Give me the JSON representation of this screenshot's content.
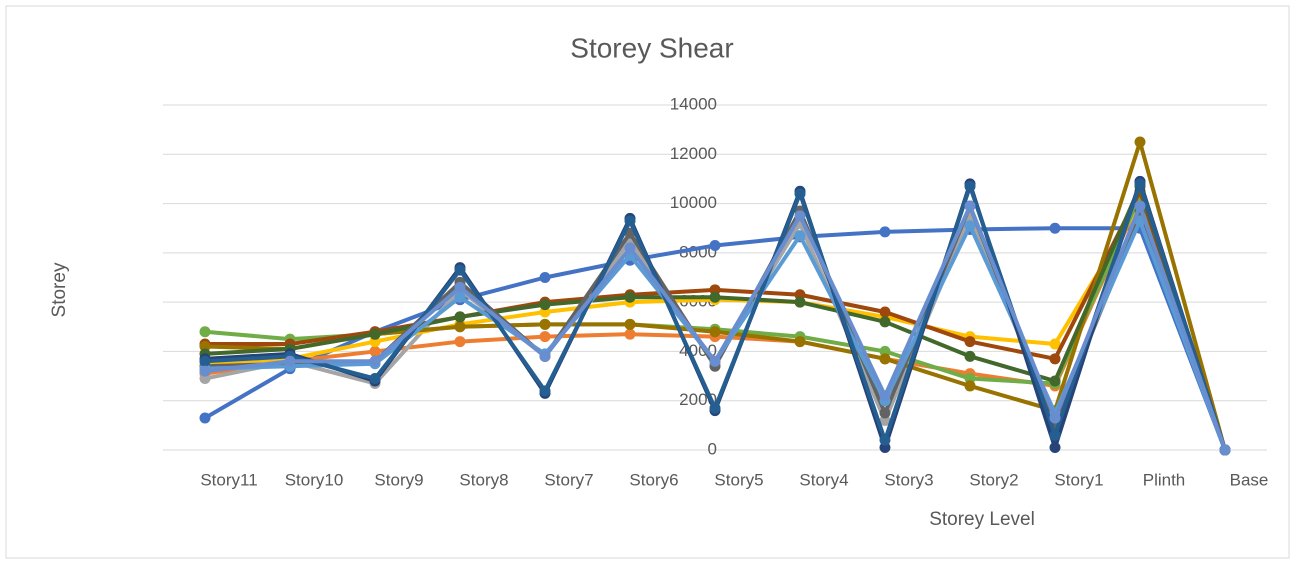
{
  "chart_data": {
    "type": "line",
    "title": "Storey Shear",
    "x_label": "Storey Level",
    "y_label": "Storey",
    "categories": [
      "Story11",
      "Story10",
      "Story9",
      "Story8",
      "Story7",
      "Story6",
      "Story5",
      "Story4",
      "Story3",
      "Story2",
      "Story1",
      "Plinth",
      "Base"
    ],
    "ylim": [
      0,
      14000
    ],
    "yticks": [
      0,
      2000,
      4000,
      6000,
      8000,
      10000,
      12000,
      14000
    ],
    "grid": true,
    "series": [
      {
        "color": "#4472c4",
        "values": [
          1300,
          3300,
          4800,
          6100,
          7000,
          7700,
          8300,
          8650,
          8850,
          8950,
          9000,
          9000,
          0
        ]
      },
      {
        "color": "#ed7d31",
        "values": [
          3100,
          3600,
          4000,
          4400,
          4600,
          4700,
          4600,
          4400,
          3700,
          3100,
          2600,
          10200,
          0
        ]
      },
      {
        "color": "#a5a5a5",
        "values": [
          2900,
          3600,
          2700,
          6500,
          3800,
          8500,
          3500,
          9200,
          1200,
          9500,
          1100,
          9500,
          0
        ]
      },
      {
        "color": "#ffc000",
        "values": [
          3500,
          3700,
          4400,
          5100,
          5600,
          6000,
          6100,
          6000,
          5400,
          4600,
          4300,
          10000,
          0
        ]
      },
      {
        "color": "#70ad47",
        "values": [
          4800,
          4500,
          4700,
          5000,
          5100,
          5100,
          4900,
          4600,
          4000,
          2900,
          2700,
          10300,
          0
        ]
      },
      {
        "color": "#9e480e",
        "values": [
          4300,
          4300,
          4800,
          5400,
          6000,
          6300,
          6500,
          6300,
          5600,
          4400,
          3700,
          10500,
          0
        ]
      },
      {
        "color": "#997300",
        "values": [
          4200,
          4100,
          4700,
          5000,
          5100,
          5100,
          4800,
          4400,
          3700,
          2600,
          1600,
          12500,
          0
        ]
      },
      {
        "color": "#43682b",
        "values": [
          3900,
          4100,
          4700,
          5400,
          5900,
          6200,
          6200,
          6000,
          5200,
          3800,
          2800,
          10700,
          0
        ]
      },
      {
        "color": "#636363",
        "values": [
          3400,
          3500,
          3600,
          6800,
          3800,
          8800,
          3400,
          9700,
          1500,
          9900,
          1000,
          9700,
          0
        ]
      },
      {
        "color": "#5b9bd5",
        "values": [
          3300,
          3400,
          3500,
          6200,
          3900,
          7900,
          3600,
          8700,
          2000,
          9100,
          1500,
          9300,
          0
        ]
      },
      {
        "color": "#264478",
        "values": [
          3700,
          3900,
          2800,
          7400,
          2300,
          9400,
          1600,
          10500,
          100,
          10800,
          100,
          10900,
          0
        ]
      },
      {
        "color": "#255e91",
        "values": [
          3600,
          3800,
          2900,
          7300,
          2400,
          9300,
          1700,
          10400,
          400,
          10700,
          600,
          10800,
          0
        ]
      },
      {
        "color": "#698ed0",
        "values": [
          3200,
          3600,
          3600,
          6600,
          3800,
          8200,
          3600,
          9500,
          2200,
          9900,
          1300,
          9900,
          0
        ]
      }
    ]
  }
}
